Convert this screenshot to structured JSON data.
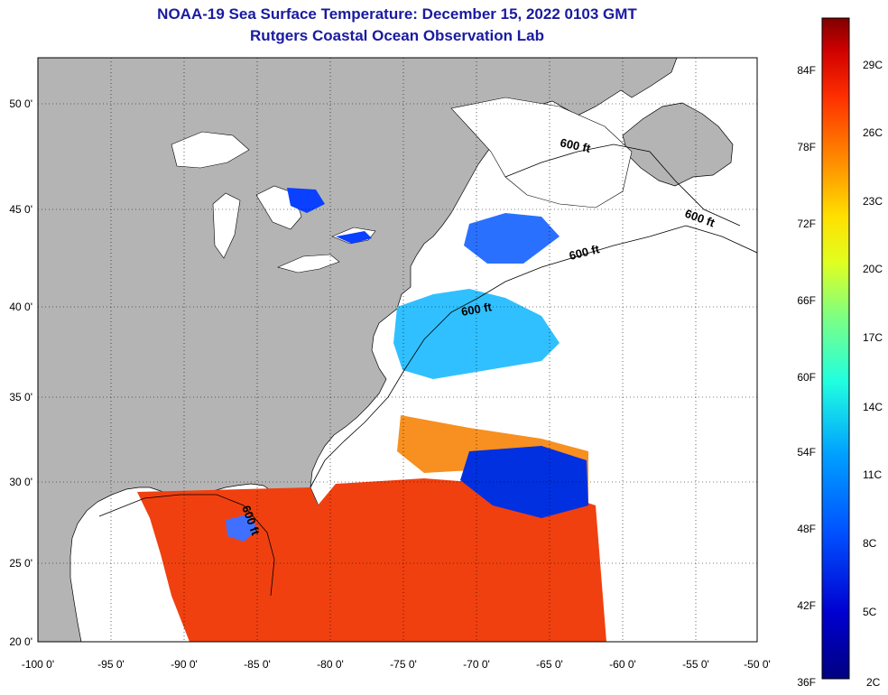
{
  "header": {
    "title": "NOAA-19 Sea Surface Temperature:  December 15, 2022 0103 GMT",
    "subtitle": "Rutgers Coastal Ocean Observation Lab"
  },
  "map": {
    "lon_labels": [
      "-100 0'",
      "-95 0'",
      "-90 0'",
      "-85 0'",
      "-80 0'",
      "-75 0'",
      "-70 0'",
      "-65 0'",
      "-60 0'",
      "-55 0'",
      "-50 0'"
    ],
    "lat_labels": [
      "50 0'",
      "45 0'",
      "40 0'",
      "35 0'",
      "30 0'",
      "25 0'",
      "20 0'"
    ],
    "contour_label": "600 ft",
    "colors": {
      "land": "#b4b4b4",
      "cloud": "#ffffff",
      "grid": "#000000"
    }
  },
  "colorbar": {
    "f_labels": [
      "84F",
      "78F",
      "72F",
      "66F",
      "60F",
      "54F",
      "48F",
      "42F",
      "36F"
    ],
    "c_labels": [
      "29C",
      "26C",
      "23C",
      "20C",
      "17C",
      "14C",
      "11C",
      "8C",
      "5C",
      "2C"
    ],
    "colors": [
      "#800000",
      "#e60000",
      "#ff5000",
      "#ffa000",
      "#ffff00",
      "#a0ff40",
      "#20ffd0",
      "#00a0ff",
      "#0040ff",
      "#0000b0",
      "#000080"
    ]
  }
}
